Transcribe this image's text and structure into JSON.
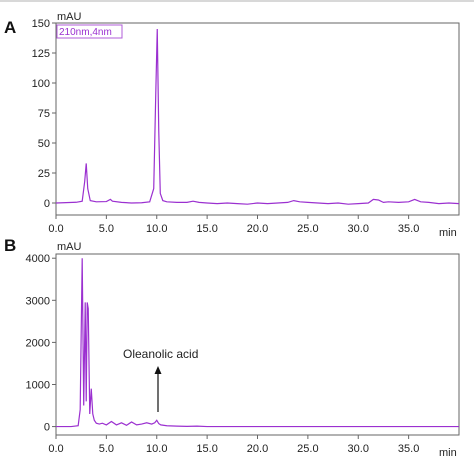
{
  "chart_data": [
    {
      "panel": "A",
      "type": "line",
      "y_unit": "mAU",
      "x_unit": "min",
      "xlim": [
        0,
        40
      ],
      "ylim": [
        -10,
        150
      ],
      "x_ticks": [
        "0.0",
        "5.0",
        "10.0",
        "15.0",
        "20.0",
        "25.0",
        "30.0",
        "35.0"
      ],
      "y_ticks": [
        "150",
        "125",
        "100",
        "75",
        "50",
        "25",
        "0"
      ],
      "y_tick_values": [
        150,
        125,
        100,
        75,
        50,
        25,
        0
      ],
      "x_tick_values": [
        0,
        5,
        10,
        15,
        20,
        25,
        30,
        35
      ],
      "legend": "210nm,4nm",
      "grid": false,
      "series": [
        {
          "name": "210nm,4nm",
          "color": "#9b30d0",
          "x": [
            0,
            1.0,
            2.0,
            2.6,
            2.85,
            3.0,
            3.15,
            3.4,
            4.0,
            5.0,
            5.4,
            5.6,
            6.5,
            7.5,
            8.5,
            9.3,
            9.7,
            9.9,
            10.05,
            10.2,
            10.35,
            10.6,
            11.0,
            12.0,
            13.0,
            13.6,
            14.2,
            15.0,
            16.0,
            17.0,
            18.0,
            19.0,
            20.0,
            21.0,
            22.0,
            23.0,
            23.6,
            24.2,
            25.0,
            26.0,
            27.0,
            28.0,
            29.0,
            30.0,
            31.0,
            31.5,
            32.0,
            32.5,
            33.0,
            34.0,
            35.0,
            35.6,
            36.2,
            37.0,
            38.0,
            39.0,
            40.0
          ],
          "y": [
            0,
            0.3,
            0.6,
            1.5,
            18,
            33,
            12,
            2,
            1,
            1.2,
            3,
            1.5,
            0.5,
            0,
            0.2,
            1,
            12,
            90,
            145,
            60,
            8,
            2,
            1,
            0.5,
            0.5,
            1.5,
            0.5,
            0,
            -0.5,
            0,
            -0.5,
            -1,
            0,
            -0.5,
            0,
            0.5,
            2,
            1,
            0.5,
            0,
            -0.5,
            0,
            -1,
            -0.5,
            0,
            3,
            2.5,
            0.5,
            1,
            0.5,
            1,
            3,
            1,
            0.5,
            -0.5,
            0,
            -0.5
          ]
        }
      ]
    },
    {
      "panel": "B",
      "type": "line",
      "y_unit": "mAU",
      "x_unit": "min",
      "xlim": [
        0,
        40
      ],
      "ylim": [
        -200,
        4100
      ],
      "x_ticks": [
        "0.0",
        "5.0",
        "10.0",
        "15.0",
        "20.0",
        "25.0",
        "30.0",
        "35.0"
      ],
      "y_ticks": [
        "4000",
        "3000",
        "2000",
        "1000",
        "0"
      ],
      "y_tick_values": [
        4000,
        3000,
        2000,
        1000,
        0
      ],
      "x_tick_values": [
        0,
        5,
        10,
        15,
        20,
        25,
        30,
        35
      ],
      "grid": false,
      "annotations": [
        {
          "text": "Oleanolic acid",
          "x": 10.1,
          "y": 120,
          "arrow": true
        }
      ],
      "series": [
        {
          "name": "",
          "color": "#9b30d0",
          "x": [
            0,
            1.5,
            2.2,
            2.4,
            2.6,
            2.75,
            2.9,
            3.0,
            3.1,
            3.2,
            3.35,
            3.5,
            3.65,
            3.8,
            4.0,
            4.3,
            4.6,
            5.0,
            5.5,
            6.0,
            6.5,
            7.0,
            7.5,
            8.0,
            8.5,
            9.0,
            9.5,
            9.8,
            10.0,
            10.2,
            10.4,
            11.0,
            12.0,
            13.0,
            14.0,
            15.0,
            17.0,
            20.0,
            25.0,
            30.0,
            35.0,
            40.0
          ],
          "y": [
            0,
            0,
            20,
            400,
            4000,
            500,
            2950,
            600,
            2950,
            2800,
            300,
            900,
            300,
            150,
            80,
            60,
            80,
            40,
            120,
            40,
            90,
            30,
            110,
            40,
            60,
            90,
            60,
            90,
            150,
            70,
            40,
            20,
            10,
            5,
            10,
            0,
            0,
            0,
            0,
            0,
            0,
            0
          ]
        }
      ]
    }
  ]
}
